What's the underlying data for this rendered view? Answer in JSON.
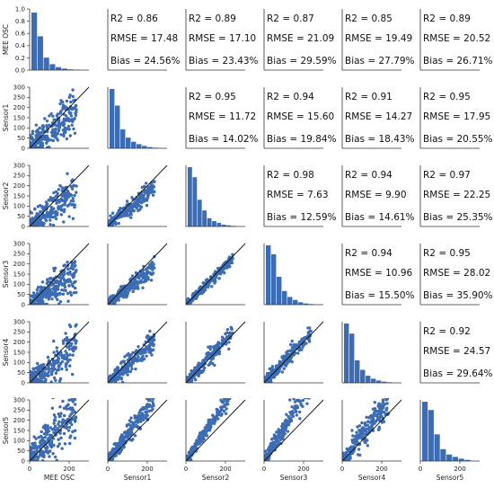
{
  "chart_data": {
    "type": "pairplot",
    "variables": [
      "MEE OSC",
      "Sensor1",
      "Sensor2",
      "Sensor3",
      "Sensor4",
      "Sensor5"
    ],
    "colors": {
      "points": "#3c6cb4",
      "bars": "#3c6cb4",
      "identity_line": "#111111"
    },
    "scatter_axis": {
      "lim": [
        0,
        300
      ],
      "xticks": [
        "0",
        "200"
      ],
      "yticks": [
        "0",
        "50",
        "100",
        "150",
        "200",
        "250",
        "300"
      ]
    },
    "top_left_hist_axis": {
      "ylim": [
        0,
        1.0
      ],
      "yticks": [
        "0.0",
        "0.2",
        "0.4",
        "0.6",
        "0.8",
        "1.0"
      ]
    },
    "histograms": [
      {
        "variable": "MEE OSC",
        "bins": [
          0.97,
          0.57,
          0.21,
          0.1,
          0.05,
          0.025,
          0.012,
          0.006
        ]
      },
      {
        "variable": "Sensor1",
        "bins": [
          1.0,
          0.72,
          0.32,
          0.18,
          0.11,
          0.07,
          0.04,
          0.02,
          0.01
        ]
      },
      {
        "variable": "Sensor2",
        "bins": [
          1.0,
          0.83,
          0.45,
          0.27,
          0.14,
          0.09,
          0.06,
          0.03,
          0.02,
          0.01
        ]
      },
      {
        "variable": "Sensor3",
        "bins": [
          1.0,
          0.85,
          0.47,
          0.23,
          0.13,
          0.08,
          0.04,
          0.02,
          0.01
        ]
      },
      {
        "variable": "Sensor4",
        "bins": [
          1.0,
          0.83,
          0.38,
          0.22,
          0.12,
          0.07,
          0.04,
          0.02,
          0.01
        ]
      },
      {
        "variable": "Sensor5",
        "bins": [
          1.0,
          0.86,
          0.45,
          0.2,
          0.11,
          0.07,
          0.04,
          0.02
        ]
      }
    ],
    "stats": [
      {
        "row": 0,
        "col": 1,
        "r2": "R2 = 0.86",
        "rmse": "RMSE = 17.48",
        "bias": "Bias = 24.56%"
      },
      {
        "row": 0,
        "col": 2,
        "r2": "R2 = 0.89",
        "rmse": "RMSE = 17.10",
        "bias": "Bias = 23.43%"
      },
      {
        "row": 0,
        "col": 3,
        "r2": "R2 = 0.87",
        "rmse": "RMSE = 21.09",
        "bias": "Bias = 29.59%"
      },
      {
        "row": 0,
        "col": 4,
        "r2": "R2 = 0.85",
        "rmse": "RMSE = 19.49",
        "bias": "Bias = 27.79%"
      },
      {
        "row": 0,
        "col": 5,
        "r2": "R2 = 0.89",
        "rmse": "RMSE = 20.52",
        "bias": "Bias = 26.71%"
      },
      {
        "row": 1,
        "col": 2,
        "r2": "R2 = 0.95",
        "rmse": "RMSE = 11.72",
        "bias": "Bias = 14.02%"
      },
      {
        "row": 1,
        "col": 3,
        "r2": "R2 = 0.94",
        "rmse": "RMSE = 15.60",
        "bias": "Bias = 19.84%"
      },
      {
        "row": 1,
        "col": 4,
        "r2": "R2 = 0.91",
        "rmse": "RMSE = 14.27",
        "bias": "Bias = 18.43%"
      },
      {
        "row": 1,
        "col": 5,
        "r2": "R2 = 0.95",
        "rmse": "RMSE = 17.95",
        "bias": "Bias = 20.55%"
      },
      {
        "row": 2,
        "col": 3,
        "r2": "R2 = 0.98",
        "rmse": "RMSE = 7.63",
        "bias": "Bias = 12.59%"
      },
      {
        "row": 2,
        "col": 4,
        "r2": "R2 = 0.94",
        "rmse": "RMSE = 9.90",
        "bias": "Bias = 14.61%"
      },
      {
        "row": 2,
        "col": 5,
        "r2": "R2 = 0.97",
        "rmse": "RMSE = 22.25",
        "bias": "Bias = 25.35%"
      },
      {
        "row": 3,
        "col": 4,
        "r2": "R2 = 0.94",
        "rmse": "RMSE = 10.96",
        "bias": "Bias = 15.50%"
      },
      {
        "row": 3,
        "col": 5,
        "r2": "R2 = 0.95",
        "rmse": "RMSE = 28.02",
        "bias": "Bias = 35.90%"
      },
      {
        "row": 4,
        "col": 5,
        "r2": "R2 = 0.92",
        "rmse": "RMSE = 24.57",
        "bias": "Bias = 29.64%"
      }
    ],
    "scatter_panels": [
      {
        "row": 1,
        "col": 0,
        "slope": 0.85,
        "spread": 0.18
      },
      {
        "row": 2,
        "col": 0,
        "slope": 0.72,
        "spread": 0.16
      },
      {
        "row": 2,
        "col": 1,
        "slope": 0.82,
        "spread": 0.08
      },
      {
        "row": 3,
        "col": 0,
        "slope": 0.68,
        "spread": 0.16
      },
      {
        "row": 3,
        "col": 1,
        "slope": 0.78,
        "spread": 0.08
      },
      {
        "row": 3,
        "col": 2,
        "slope": 0.95,
        "spread": 0.05
      },
      {
        "row": 4,
        "col": 0,
        "slope": 0.75,
        "spread": 0.18
      },
      {
        "row": 4,
        "col": 1,
        "slope": 0.85,
        "spread": 0.1
      },
      {
        "row": 4,
        "col": 2,
        "slope": 1.05,
        "spread": 0.08
      },
      {
        "row": 4,
        "col": 3,
        "slope": 1.05,
        "spread": 0.08
      },
      {
        "row": 5,
        "col": 0,
        "slope": 1.1,
        "spread": 0.22
      },
      {
        "row": 5,
        "col": 1,
        "slope": 1.3,
        "spread": 0.1
      },
      {
        "row": 5,
        "col": 2,
        "slope": 1.45,
        "spread": 0.07
      },
      {
        "row": 5,
        "col": 3,
        "slope": 1.6,
        "spread": 0.1
      },
      {
        "row": 5,
        "col": 4,
        "slope": 1.25,
        "spread": 0.14
      }
    ]
  }
}
